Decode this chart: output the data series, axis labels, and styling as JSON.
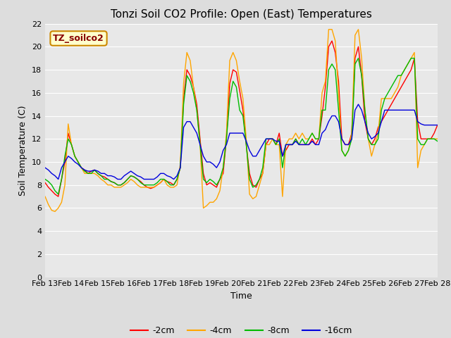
{
  "title": "Tonzi Soil CO2 Profile: Open (East) Temperatures",
  "xlabel": "Time",
  "ylabel": "Soil Temperature (C)",
  "ylim": [
    0,
    22
  ],
  "yticks": [
    0,
    2,
    4,
    6,
    8,
    10,
    12,
    14,
    16,
    18,
    20,
    22
  ],
  "date_labels": [
    "Feb 13",
    "Feb 14",
    "Feb 15",
    "Feb 16",
    "Feb 17",
    "Feb 18",
    "Feb 19",
    "Feb 20",
    "Feb 21",
    "Feb 22",
    "Feb 23",
    "Feb 24",
    "Feb 25",
    "Feb 26",
    "Feb 27",
    "Feb 28"
  ],
  "colors": {
    "-2cm": "#ff0000",
    "-4cm": "#ffa500",
    "-8cm": "#00bb00",
    "-16cm": "#0000dd"
  },
  "legend_label": "TZ_soilco2",
  "legend_box_facecolor": "#ffffcc",
  "legend_box_edgecolor": "#cc8800",
  "background_color": "#dddddd",
  "plot_bg_color": "#e8e8e8",
  "grid_color": "#ffffff",
  "series": {
    "-2cm": [
      8.2,
      7.8,
      7.5,
      7.2,
      7.0,
      8.5,
      10.0,
      12.5,
      11.5,
      10.5,
      10.0,
      9.5,
      9.3,
      9.0,
      9.2,
      9.3,
      9.0,
      8.8,
      8.7,
      8.5,
      8.3,
      8.2,
      8.0,
      8.0,
      8.2,
      8.5,
      8.8,
      8.7,
      8.5,
      8.3,
      8.0,
      7.8,
      7.7,
      7.8,
      8.0,
      8.2,
      8.5,
      8.3,
      8.2,
      8.0,
      8.5,
      9.5,
      15.5,
      18.0,
      17.5,
      16.5,
      15.0,
      12.0,
      9.0,
      8.0,
      8.2,
      8.0,
      7.8,
      8.5,
      9.0,
      12.0,
      16.8,
      18.0,
      17.8,
      16.2,
      14.5,
      11.5,
      9.0,
      8.0,
      7.8,
      8.5,
      9.0,
      11.5,
      12.0,
      12.0,
      11.5,
      12.5,
      10.5,
      11.0,
      11.5,
      11.5,
      12.0,
      11.5,
      11.5,
      11.5,
      11.5,
      12.0,
      11.5,
      12.0,
      14.0,
      16.5,
      20.0,
      20.5,
      19.5,
      17.0,
      12.0,
      11.5,
      11.5,
      12.5,
      19.0,
      20.0,
      17.5,
      13.5,
      12.0,
      11.5,
      12.0,
      13.0,
      13.5,
      14.0,
      14.5,
      15.0,
      15.5,
      16.0,
      16.5,
      17.0,
      17.5,
      18.0,
      19.0,
      13.5,
      12.0,
      12.0,
      12.0,
      12.0,
      12.5,
      13.2
    ],
    "-4cm": [
      7.0,
      6.3,
      5.8,
      5.7,
      6.0,
      6.5,
      8.0,
      13.3,
      11.5,
      10.5,
      10.0,
      9.5,
      9.0,
      9.0,
      9.0,
      9.0,
      8.8,
      8.5,
      8.3,
      8.0,
      8.0,
      7.8,
      7.8,
      7.8,
      8.0,
      8.2,
      8.5,
      8.3,
      8.0,
      7.8,
      7.8,
      7.8,
      7.8,
      7.8,
      8.0,
      8.2,
      8.5,
      8.0,
      7.8,
      7.8,
      8.0,
      9.8,
      16.8,
      19.5,
      18.8,
      16.5,
      14.5,
      11.5,
      6.0,
      6.2,
      6.5,
      6.5,
      6.8,
      7.5,
      9.5,
      12.5,
      18.8,
      19.5,
      18.8,
      17.0,
      15.5,
      12.0,
      7.2,
      6.8,
      7.0,
      8.0,
      9.0,
      11.5,
      11.5,
      12.0,
      11.5,
      11.5,
      7.0,
      11.5,
      12.0,
      12.0,
      12.5,
      12.0,
      12.5,
      12.0,
      12.0,
      12.5,
      12.0,
      12.0,
      16.0,
      17.0,
      21.5,
      21.5,
      20.5,
      16.0,
      11.0,
      10.5,
      11.0,
      12.5,
      21.0,
      21.5,
      19.0,
      14.5,
      12.0,
      10.5,
      11.5,
      12.5,
      15.5,
      15.5,
      15.5,
      15.5,
      16.0,
      16.5,
      17.5,
      18.0,
      18.5,
      19.0,
      19.5,
      9.5,
      11.0,
      11.5,
      12.0,
      12.0,
      12.0,
      12.0
    ],
    "-8cm": [
      8.5,
      8.3,
      8.0,
      7.5,
      7.2,
      8.5,
      10.5,
      12.0,
      11.5,
      10.5,
      10.0,
      9.5,
      9.2,
      9.0,
      9.0,
      9.3,
      9.0,
      8.8,
      8.5,
      8.5,
      8.3,
      8.2,
      8.0,
      8.0,
      8.2,
      8.5,
      8.8,
      8.7,
      8.5,
      8.2,
      8.0,
      8.0,
      8.0,
      8.0,
      8.2,
      8.5,
      8.5,
      8.3,
      8.0,
      8.0,
      8.5,
      9.5,
      15.0,
      17.5,
      17.0,
      16.0,
      14.5,
      11.5,
      8.5,
      8.2,
      8.5,
      8.3,
      8.0,
      8.5,
      9.5,
      12.0,
      15.5,
      17.0,
      16.5,
      14.5,
      14.0,
      11.5,
      8.5,
      7.8,
      8.0,
      8.5,
      9.5,
      12.0,
      12.0,
      12.0,
      11.5,
      12.0,
      9.5,
      11.5,
      11.5,
      11.5,
      12.0,
      11.5,
      12.0,
      11.5,
      12.0,
      12.5,
      12.0,
      12.0,
      14.5,
      14.5,
      18.0,
      18.5,
      18.0,
      14.5,
      11.0,
      10.5,
      11.0,
      12.0,
      18.5,
      19.0,
      17.5,
      14.5,
      12.0,
      11.5,
      11.5,
      12.0,
      14.5,
      15.5,
      16.0,
      16.5,
      17.0,
      17.5,
      17.5,
      18.0,
      18.5,
      19.0,
      19.0,
      12.0,
      11.5,
      11.5,
      12.0,
      12.0,
      12.0,
      11.8
    ],
    "-16cm": [
      9.5,
      9.3,
      9.0,
      8.8,
      8.5,
      9.5,
      10.0,
      10.5,
      10.3,
      10.0,
      9.8,
      9.5,
      9.3,
      9.2,
      9.2,
      9.3,
      9.2,
      9.0,
      9.0,
      8.8,
      8.8,
      8.7,
      8.5,
      8.5,
      8.8,
      9.0,
      9.2,
      9.0,
      8.8,
      8.7,
      8.5,
      8.5,
      8.5,
      8.5,
      8.7,
      9.0,
      9.0,
      8.8,
      8.7,
      8.5,
      8.8,
      9.5,
      13.0,
      13.5,
      13.5,
      13.0,
      12.5,
      11.5,
      10.5,
      10.0,
      10.0,
      9.8,
      9.5,
      10.0,
      11.0,
      11.5,
      12.5,
      12.5,
      12.5,
      12.5,
      12.5,
      11.8,
      11.0,
      10.5,
      10.5,
      11.0,
      11.5,
      12.0,
      12.0,
      12.0,
      11.8,
      11.8,
      10.5,
      11.5,
      11.5,
      11.5,
      11.8,
      11.5,
      11.5,
      11.5,
      11.5,
      11.8,
      11.5,
      11.5,
      12.5,
      12.8,
      13.5,
      14.0,
      14.0,
      13.5,
      12.0,
      11.5,
      11.5,
      12.0,
      14.5,
      15.0,
      14.5,
      13.5,
      12.5,
      12.0,
      12.2,
      12.5,
      13.5,
      14.5,
      14.5,
      14.5,
      14.5,
      14.5,
      14.5,
      14.5,
      14.5,
      14.5,
      14.5,
      13.5,
      13.3,
      13.2,
      13.2,
      13.2,
      13.2,
      13.2
    ]
  }
}
